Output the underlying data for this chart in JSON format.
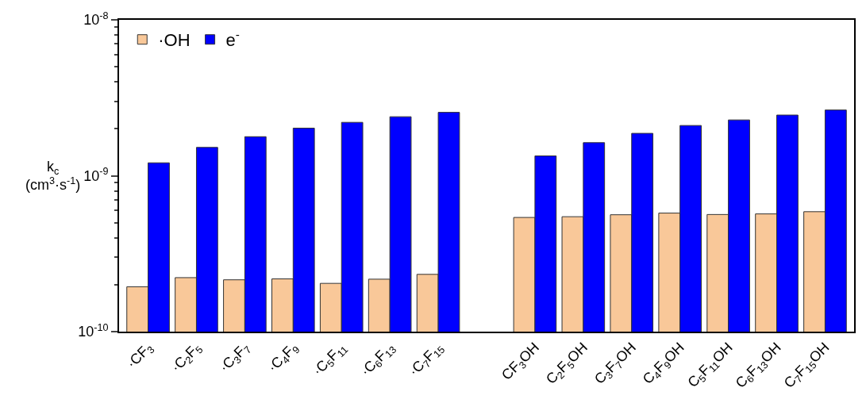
{
  "chart_data": {
    "type": "bar",
    "ylabel": "k$_{c}$\n(cm$^{3}$·s$^{-1}$)",
    "categories": [
      "·CF$_{3}$",
      "·C$_{2}$F$_{5}$",
      "·C$_{3}$F$_{7}$",
      "·C$_{4}$F$_{9}$",
      "·C$_{5}$F$_{11}$",
      "·C$_{6}$F$_{13}$",
      "·C$_{7}$F$_{15}$",
      null,
      "CF$_{3}$OH",
      "C$_{2}$F$_{5}$OH",
      "C$_{3}$F$_{7}$OH",
      "C$_{4}$F$_{9}$OH",
      "C$_{5}$F$_{11}$OH",
      "C$_{6}$F$_{13}$OH",
      "C$_{7}$F$_{15}$OH"
    ],
    "series": [
      {
        "name": "·OH",
        "color": "#f9c899",
        "values": [
          1.94e-10,
          2.22e-10,
          2.15e-10,
          2.18e-10,
          2.04e-10,
          2.17e-10,
          2.33e-10,
          null,
          5.4e-10,
          5.46e-10,
          5.62e-10,
          5.76e-10,
          5.64e-10,
          5.69e-10,
          5.88e-10
        ]
      },
      {
        "name": "e$^{-}$",
        "color": "#0000ff",
        "values": [
          1.21e-09,
          1.52e-09,
          1.78e-09,
          2.02e-09,
          2.2e-09,
          2.39e-09,
          2.55e-09,
          null,
          1.34e-09,
          1.63e-09,
          1.87e-09,
          2.1e-09,
          2.28e-09,
          2.45e-09,
          2.64e-09
        ]
      }
    ],
    "log": "y",
    "ylim": [
      1e-10,
      1e-08
    ],
    "yticks": [
      {
        "value": 1e-10,
        "label": "10$^{-10}$"
      },
      {
        "value": 1e-09,
        "label": "10$^{-9}$"
      },
      {
        "value": 1e-08,
        "label": "10$^{-8}$"
      }
    ],
    "legend": "top left"
  }
}
